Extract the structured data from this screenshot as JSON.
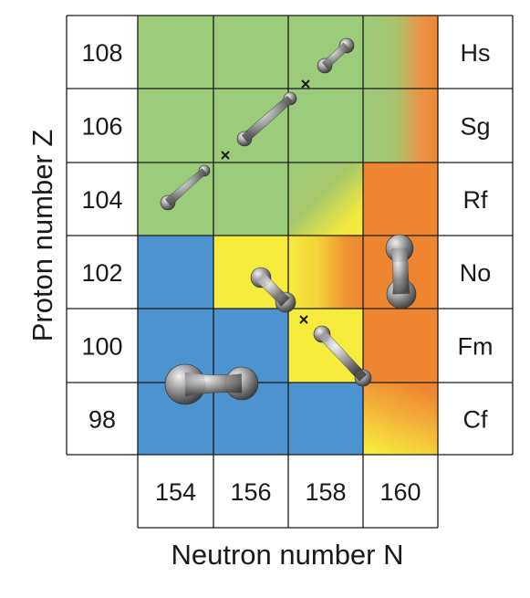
{
  "axes": {
    "ylabel": "Proton number Z",
    "xlabel": "Neutron number N"
  },
  "proton_numbers": [
    "108",
    "106",
    "104",
    "102",
    "100",
    "98"
  ],
  "elements": [
    "Hs",
    "Sg",
    "Rf",
    "No",
    "Fm",
    "Cf"
  ],
  "neutron_numbers": [
    "154",
    "156",
    "158",
    "160"
  ],
  "colors": {
    "green": "#9ccb7c",
    "blue": "#4d93cf",
    "yellow": "#f7ec3d",
    "orange": "#ee8631",
    "grid": "#1a1a1a"
  },
  "region_map": [
    [
      "green",
      "green",
      "green",
      "green-to-orange"
    ],
    [
      "green",
      "green",
      "green",
      "green-to-orange"
    ],
    [
      "green",
      "green",
      "green-to-yellow",
      "orange"
    ],
    [
      "blue",
      "yellow",
      "yellow-to-orange",
      "orange"
    ],
    [
      "blue",
      "blue",
      "yellow",
      "orange"
    ],
    [
      "blue",
      "blue",
      "blue",
      "orange-to-yellow"
    ]
  ],
  "markers": [
    "x",
    "x",
    "x"
  ],
  "shapes": [
    "fission-fragment-shape",
    "fission-fragment-shape",
    "fission-fragment-shape",
    "fission-fragment-shape",
    "fission-fragment-shape",
    "fission-fragment-shape",
    "fission-fragment-shape"
  ]
}
